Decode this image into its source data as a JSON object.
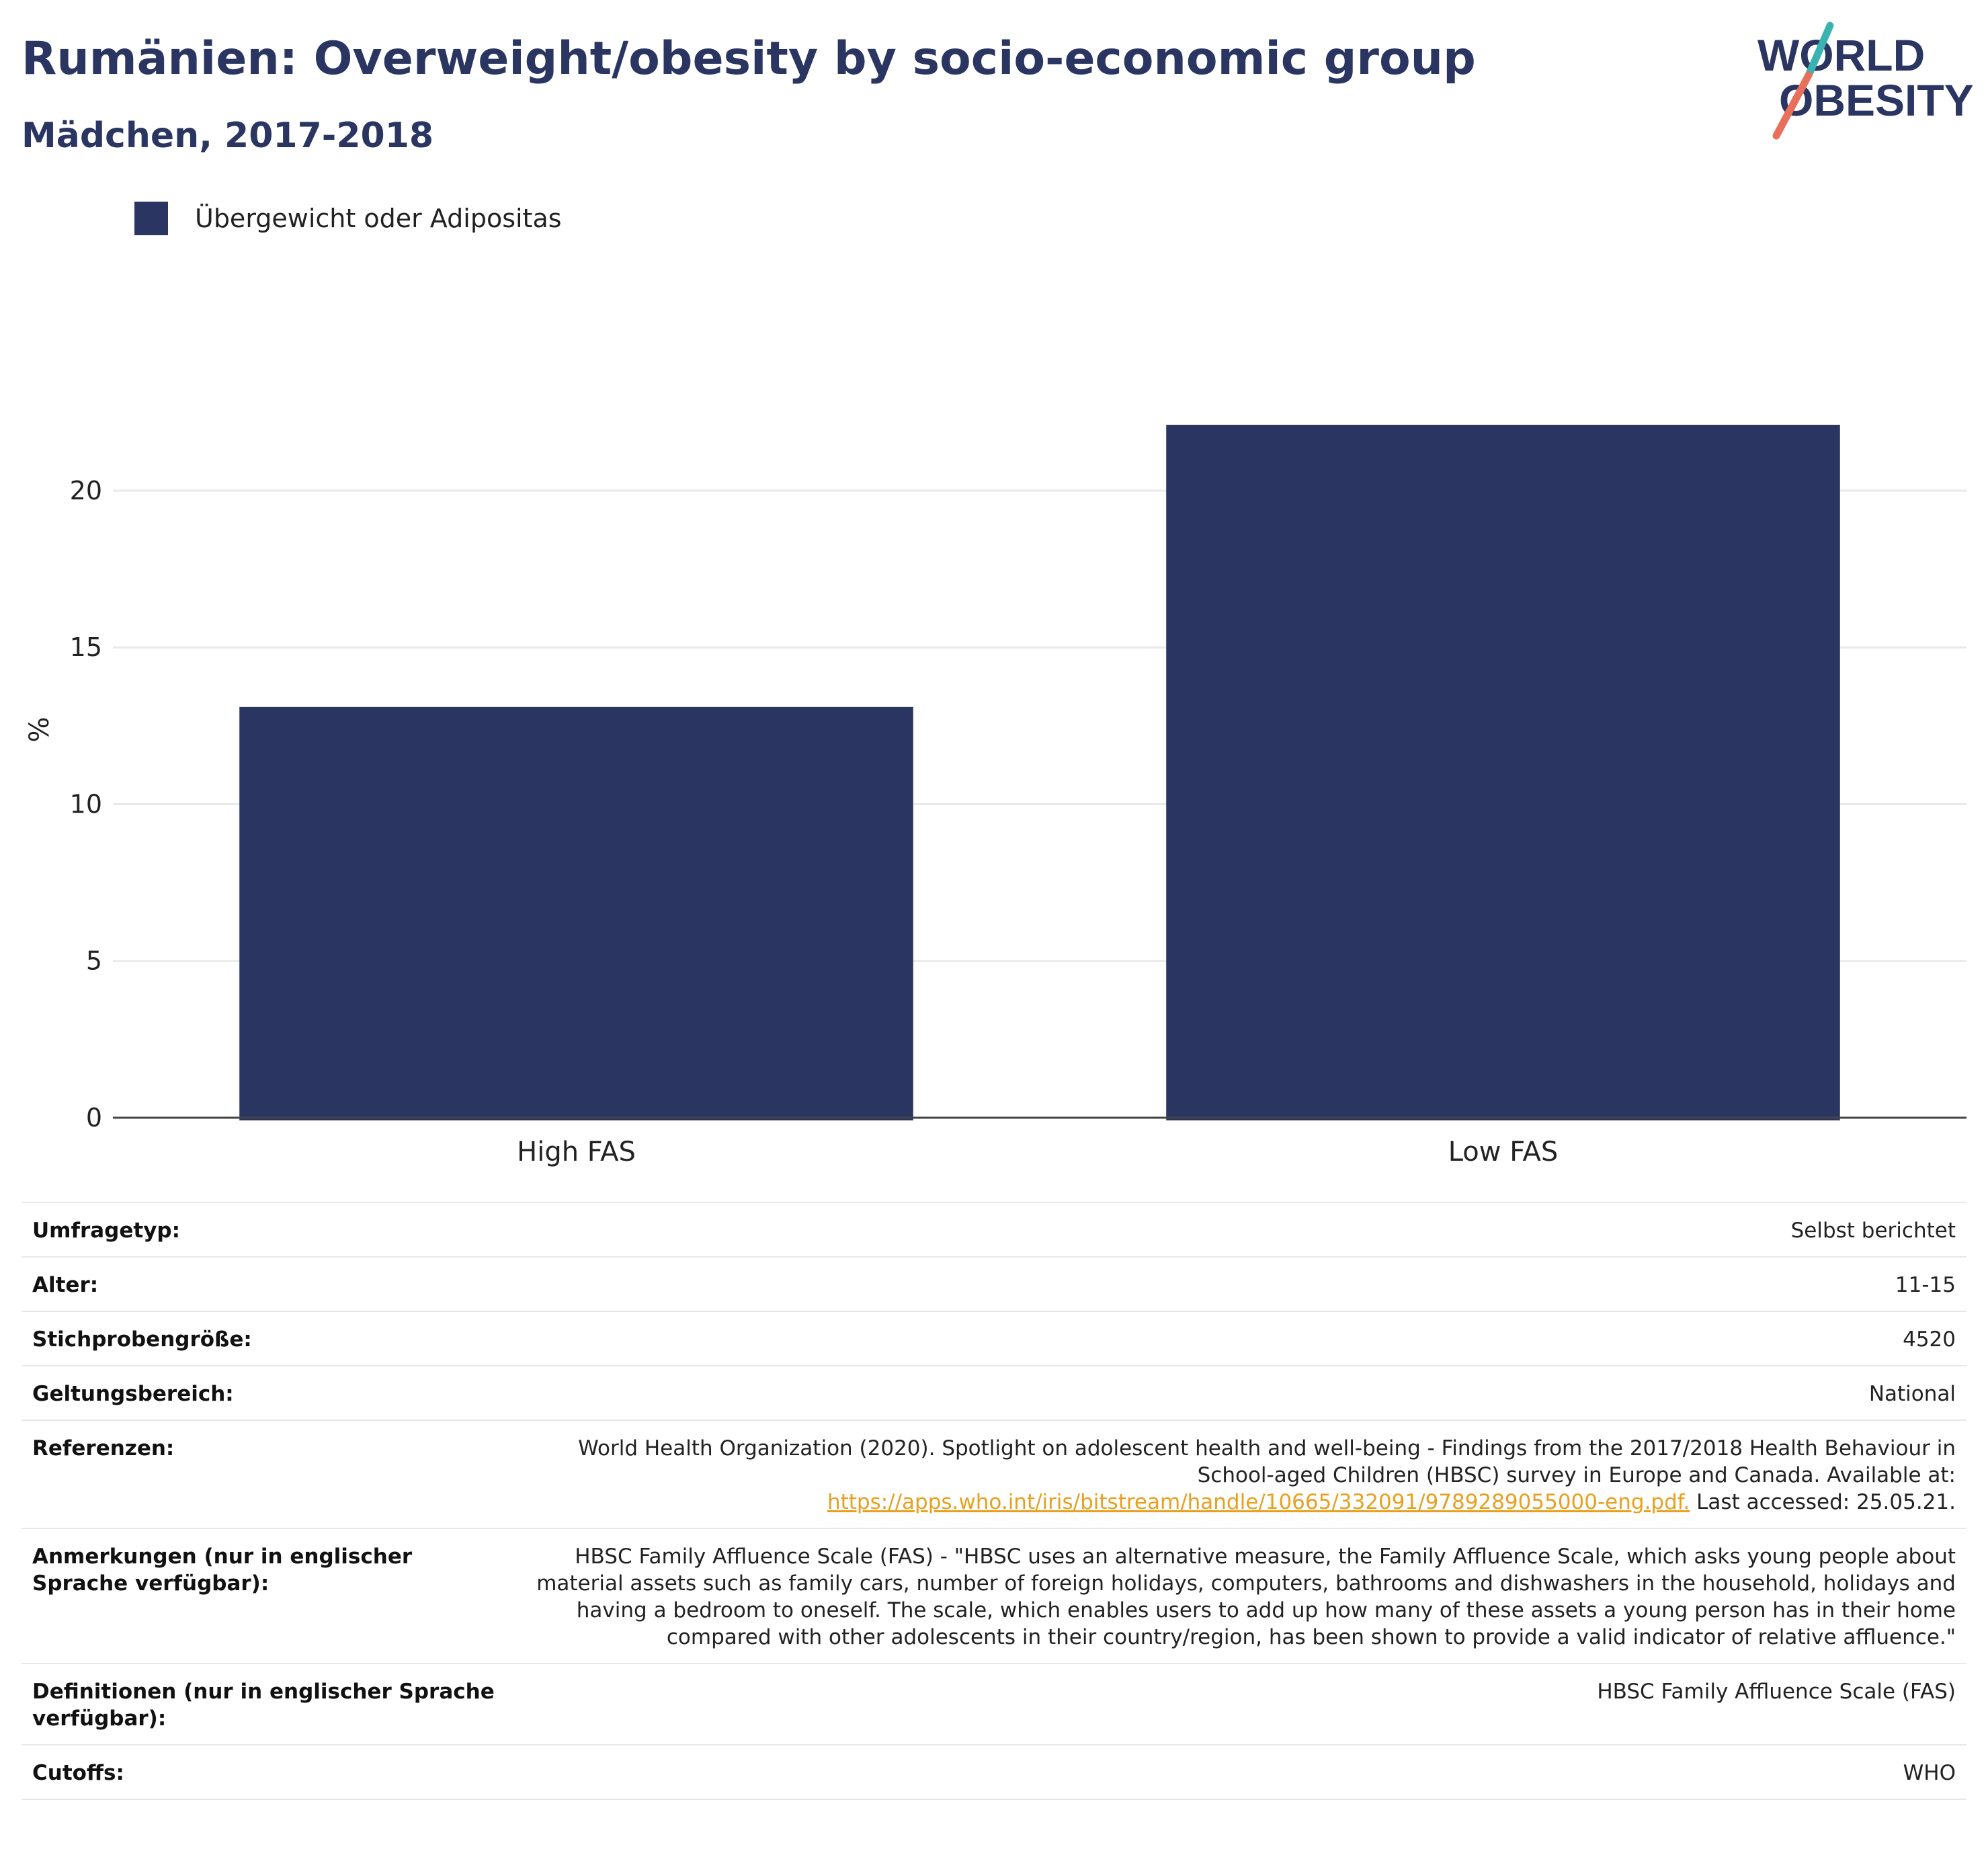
{
  "title": "Rumänien: Overweight/obesity by socio-economic group",
  "subtitle": "Mädchen, 2017-2018",
  "logo": {
    "line1": "WORLD",
    "line2": "OBESITY",
    "colors": {
      "text": "#2a3661",
      "slash_top": "#3ab3b0",
      "slash_bottom": "#e8705a"
    }
  },
  "colors": {
    "bar": "#2a3661",
    "grid": "#e9e9ee",
    "axis": "#444444"
  },
  "chart_data": {
    "type": "bar",
    "categories": [
      "High FAS",
      "Low FAS"
    ],
    "series": [
      {
        "name": "Übergewicht oder Adipositas",
        "values": [
          13.1,
          22.1
        ]
      }
    ],
    "ylabel": "%",
    "ylim": [
      0,
      24.5
    ],
    "yticks": [
      0,
      5,
      10,
      15,
      20
    ],
    "grid": true,
    "legend": "top-left"
  },
  "info": [
    {
      "label": "Umfragetyp:",
      "value": "Selbst berichtet"
    },
    {
      "label": "Alter:",
      "value": "11-15"
    },
    {
      "label": "Stichprobengröße:",
      "value": "4520"
    },
    {
      "label": "Geltungsbereich:",
      "value": "National"
    },
    {
      "label": "Referenzen:",
      "value": "World Health Organization (2020). Spotlight on adolescent health and well-being - Findings from the 2017/2018 Health Behaviour in School-aged Children (HBSC) survey in Europe and Canada. Available at:",
      "link": "https://apps.who.int/iris/bitstream/handle/10665/332091/9789289055000-eng.pdf.",
      "suffix": " Last accessed: 25.05.21."
    },
    {
      "label": "Anmerkungen (nur in englischer Sprache verfügbar):",
      "value": "HBSC Family Affluence Scale (FAS) - \"HBSC uses an alternative measure, the Family Affluence Scale, which asks young people about material assets such as family cars, number of foreign holidays, computers, bathrooms and dishwashers in the household, holidays and having a bedroom to oneself. The scale, which enables users to add up how many of these assets a young person has in their home compared with other adolescents in their country/region, has been shown to provide a valid indicator of relative affluence.\""
    },
    {
      "label": "Definitionen (nur in englischer Sprache verfügbar):",
      "value": "HBSC Family Affluence Scale (FAS)"
    },
    {
      "label": "Cutoffs:",
      "value": "WHO"
    }
  ]
}
